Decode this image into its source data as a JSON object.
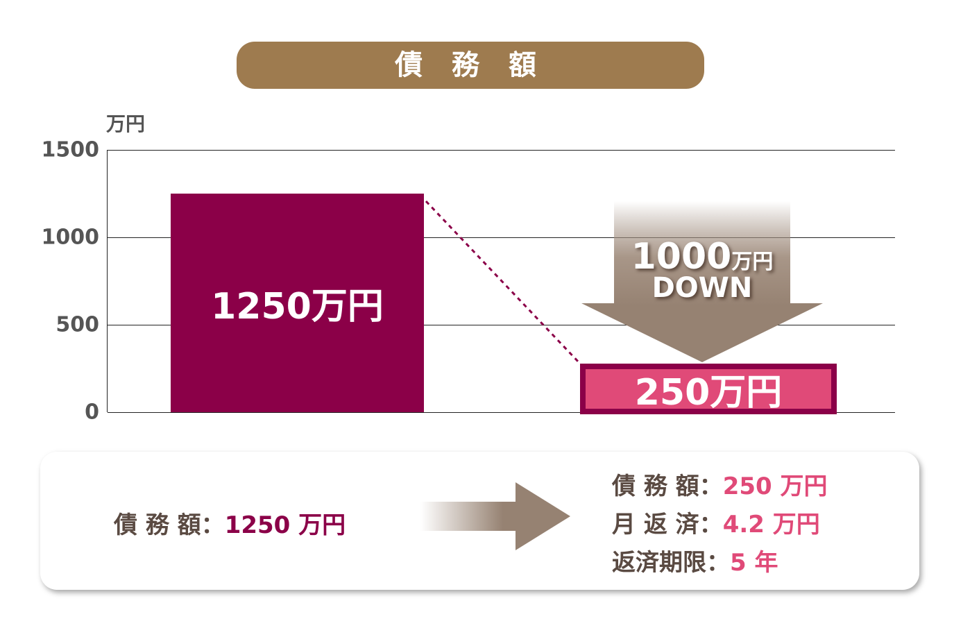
{
  "title": "債 務 額",
  "chart_data": {
    "type": "bar",
    "ylabel": "万円",
    "ylim": [
      0,
      1500
    ],
    "yticks": [
      "0",
      "500",
      "1000",
      "1500"
    ],
    "grid": true,
    "categories": [
      "before",
      "after"
    ],
    "values": [
      1250,
      250
    ],
    "data_labels": [
      "1250万円",
      "250万円"
    ],
    "annotation": {
      "amount": "1000",
      "unit": "万円",
      "word": "DOWN"
    },
    "colors": {
      "before": "#8B0048",
      "after": "#E04A78",
      "after_border": "#8B0048",
      "arrow": "#968272"
    }
  },
  "summary": {
    "before": {
      "label": "債 務 額：",
      "value": "1250 万円"
    },
    "after": [
      {
        "label": "債 務 額：",
        "value": "250 万円"
      },
      {
        "label": "月 返 済：",
        "value": "4.2 万円"
      },
      {
        "label": "返済期限：",
        "value": "5 年"
      }
    ]
  }
}
